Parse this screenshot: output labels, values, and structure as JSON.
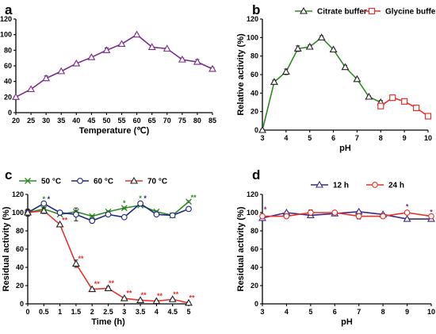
{
  "chart_data": [
    {
      "panel_label": "a",
      "type": "line",
      "xlabel": "Temperature (℃)",
      "ylabel": "Relative activity (%)",
      "xlim": [
        20,
        85
      ],
      "ylim": [
        0,
        120
      ],
      "xticks": [
        "20",
        "25",
        "30",
        "35",
        "40",
        "45",
        "50",
        "55",
        "60",
        "65",
        "70",
        "75",
        "80",
        "85"
      ],
      "yticks": [
        "0",
        "20",
        "40",
        "60",
        "80",
        "100",
        "120"
      ],
      "series": [
        {
          "color": "#7B2C8E",
          "marker": "triangle",
          "x": [
            20,
            25,
            30,
            35,
            40,
            45,
            50,
            55,
            60,
            65,
            70,
            75,
            80,
            85
          ],
          "y": [
            20,
            30,
            44,
            53,
            63,
            71,
            80,
            88,
            100,
            84,
            82,
            68,
            65,
            56
          ],
          "err": [
            1,
            1,
            3,
            1,
            1,
            1,
            3,
            1,
            1,
            1,
            1,
            2,
            3,
            2
          ]
        }
      ]
    },
    {
      "panel_label": "b",
      "type": "line",
      "xlabel": "pH",
      "ylabel": "Relative activity (%)",
      "xlim": [
        3,
        10
      ],
      "ylim": [
        0,
        120
      ],
      "xticks": [
        "3",
        "4",
        "5",
        "6",
        "7",
        "8",
        "9",
        "10"
      ],
      "yticks": [
        "0",
        "20",
        "40",
        "60",
        "80",
        "100",
        "120"
      ],
      "legend_position": "top",
      "series": [
        {
          "name": "Citrate buffer",
          "color": "#2E8B22",
          "marker": "triangle",
          "x": [
            3,
            3.5,
            4,
            4.5,
            5,
            5.5,
            6,
            6.5,
            7,
            7.5,
            8
          ],
          "y": [
            0,
            52,
            63,
            88,
            90,
            100,
            87,
            68,
            55,
            36,
            30
          ],
          "err": [
            1,
            2,
            3,
            3,
            2,
            2,
            1,
            2,
            1,
            1,
            2
          ]
        },
        {
          "name": "Glycine buffer",
          "color": "#E8312A",
          "marker": "square",
          "x": [
            8,
            8.5,
            9,
            9.5,
            10
          ],
          "y": [
            26,
            35,
            31,
            24,
            15
          ],
          "err": [
            2,
            2,
            1,
            1,
            2
          ]
        }
      ]
    },
    {
      "panel_label": "c",
      "type": "line",
      "xlabel": "Time (h)",
      "ylabel": "Residual activity (%)",
      "xlim": [
        0,
        5
      ],
      "ylim": [
        0,
        120
      ],
      "xticks": [
        "0",
        "0.5",
        "1",
        "1.5",
        "2",
        "2.5",
        "3",
        "3.5",
        "4",
        "4.5",
        "5"
      ],
      "yticks": [
        "0",
        "20",
        "40",
        "60",
        "80",
        "100",
        "120"
      ],
      "legend_position": "top",
      "series": [
        {
          "name": "50 °C",
          "color": "#2E8B22",
          "marker": "cross",
          "x": [
            0,
            0.5,
            1,
            1.5,
            2,
            2.5,
            3,
            3.5,
            4,
            4.5,
            5
          ],
          "y": [
            100,
            104,
            98,
            101,
            96,
            101,
            105,
            108,
            101,
            97,
            112
          ],
          "err": [
            3,
            2,
            1,
            1,
            1,
            1,
            1,
            1,
            1,
            1,
            1
          ]
        },
        {
          "name": "60 °C",
          "color": "#1F2A7A",
          "marker": "circle",
          "x": [
            0,
            0.5,
            1,
            1.5,
            2,
            2.5,
            3,
            3.5,
            4,
            4.5,
            5
          ],
          "y": [
            100,
            110,
            100,
            98,
            91,
            98,
            95,
            110,
            98,
            97,
            104
          ],
          "err": [
            3,
            2,
            1,
            7,
            1,
            1,
            1,
            2,
            1,
            1,
            1
          ]
        },
        {
          "name": "70 °C",
          "color": "#E8312A",
          "marker": "triangle",
          "x": [
            0,
            0.5,
            1,
            1.5,
            2,
            2.5,
            3,
            3.5,
            4,
            4.5,
            5
          ],
          "y": [
            100,
            102,
            87,
            44,
            16,
            17,
            6,
            4,
            3,
            5,
            1
          ],
          "err": [
            4,
            3,
            1,
            4,
            1,
            2,
            1,
            1,
            1,
            1,
            1
          ]
        }
      ],
      "significance_marks": [
        {
          "x": 0.5,
          "y": 112,
          "text": "*",
          "color": "#2E8B22"
        },
        {
          "x": 0.65,
          "y": 112,
          "text": "*",
          "color": "#1F2A7A"
        },
        {
          "x": 3,
          "y": 108,
          "text": "*",
          "color": "#2E8B22"
        },
        {
          "x": 3.5,
          "y": 113,
          "text": "*",
          "color": "#2E8B22"
        },
        {
          "x": 3.65,
          "y": 113,
          "text": "*",
          "color": "#1F2A7A"
        },
        {
          "x": 5.15,
          "y": 114,
          "text": "**",
          "color": "#2E8B22"
        },
        {
          "x": 1.15,
          "y": 89,
          "text": "**",
          "color": "#E8312A"
        },
        {
          "x": 1.65,
          "y": 47,
          "text": "**",
          "color": "#E8312A"
        },
        {
          "x": 2.15,
          "y": 19,
          "text": "**",
          "color": "#E8312A"
        },
        {
          "x": 2.6,
          "y": 20,
          "text": "**",
          "color": "#E8312A"
        },
        {
          "x": 3.15,
          "y": 9,
          "text": "**",
          "color": "#E8312A"
        },
        {
          "x": 3.6,
          "y": 7,
          "text": "**",
          "color": "#E8312A"
        },
        {
          "x": 4.1,
          "y": 6,
          "text": "**",
          "color": "#E8312A"
        },
        {
          "x": 4.6,
          "y": 8,
          "text": "**",
          "color": "#E8312A"
        },
        {
          "x": 5.1,
          "y": 4,
          "text": "**",
          "color": "#E8312A"
        }
      ]
    },
    {
      "panel_label": "d",
      "type": "line",
      "xlabel": "pH",
      "ylabel": "Residual activity (%)",
      "xlim": [
        3,
        10
      ],
      "ylim": [
        0,
        120
      ],
      "xticks": [
        "3",
        "4",
        "5",
        "6",
        "7",
        "8",
        "9",
        "10"
      ],
      "yticks": [
        "0",
        "20",
        "40",
        "60",
        "80",
        "100",
        "120"
      ],
      "legend_position": "top",
      "series": [
        {
          "name": "12 h",
          "color": "#3A2A8A",
          "marker": "triangle",
          "x": [
            3,
            4,
            5,
            6,
            7,
            8,
            9,
            10
          ],
          "y": [
            94,
            100,
            97,
            99,
            101,
            98,
            93,
            93
          ],
          "err": [
            1,
            1,
            1,
            1,
            1,
            1,
            1,
            1
          ]
        },
        {
          "name": "24 h",
          "color": "#E8312A",
          "marker": "circle",
          "x": [
            3,
            4,
            5,
            6,
            7,
            8,
            9,
            10
          ],
          "y": [
            96,
            96,
            100,
            100,
            96,
            96,
            100,
            96
          ],
          "err": [
            1,
            1,
            3,
            1,
            3,
            1,
            1,
            1
          ]
        }
      ],
      "significance_marks": [
        {
          "x": 3.12,
          "y": 101,
          "text": "*",
          "color": "#7B2C8E"
        },
        {
          "x": 9.0,
          "y": 104,
          "text": "*",
          "color": "#7B2C8E"
        },
        {
          "x": 10.0,
          "y": 98,
          "text": "*",
          "color": "#7B2C8E"
        }
      ]
    }
  ]
}
